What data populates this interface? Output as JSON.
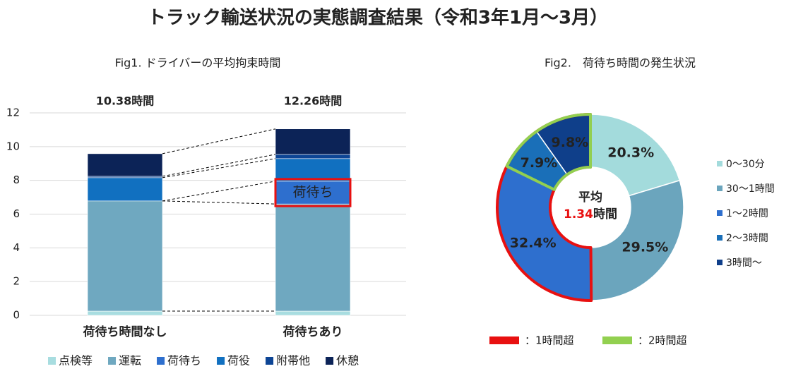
{
  "chart_data": [
    {
      "type": "bar",
      "stacked": true,
      "page_title": "トラック輸送状況の実態調査結果（令和3年1月～3月）",
      "title": "Fig1. ドライバーの平均拘束時間",
      "categories": [
        "荷待ち時間なし",
        "荷待ちあり"
      ],
      "annotations": [
        "10.38時間",
        "12.26時間"
      ],
      "highlight_label": "荷待ち",
      "series": [
        {
          "name": "点検等",
          "color": "#a8dde0",
          "values": [
            0.25,
            0.25
          ]
        },
        {
          "name": "運転",
          "color": "#6fa8c0",
          "values": [
            6.53,
            6.35
          ]
        },
        {
          "name": "荷待ち",
          "color": "#2e6fce",
          "values": [
            0,
            1.35
          ]
        },
        {
          "name": "荷役",
          "color": "#1170c0",
          "values": [
            1.38,
            1.34
          ]
        },
        {
          "name": "附帯他",
          "color": "#0d4595",
          "values": [
            0.08,
            0.25
          ]
        },
        {
          "name": "休憩",
          "color": "#0c2357",
          "values": [
            1.34,
            1.51
          ]
        }
      ],
      "ylim": [
        0,
        12
      ],
      "yticks": [
        0,
        2,
        4,
        6,
        8,
        10,
        12
      ],
      "grid": true
    },
    {
      "type": "pie",
      "donut": true,
      "title": "Fig2.　荷待ち時間の発生状況",
      "categories": [
        "0～30分",
        "30～1時間",
        "1～2時間",
        "2～3時間",
        "3時間～"
      ],
      "values": [
        20.3,
        29.5,
        32.4,
        7.9,
        9.8
      ],
      "value_labels": [
        "20.3%",
        "29.5%",
        "32.4%",
        "7.9%",
        "9.8%"
      ],
      "colors": [
        "#a3dbdc",
        "#6ba5bd",
        "#2e6fce",
        "#1a6fb8",
        "#0f3f8a"
      ],
      "center_title": "平均",
      "center_value": "1.34",
      "center_unit": "時間",
      "outline_legend": [
        {
          "label": "：1時間超",
          "color": "#e81010"
        },
        {
          "label": "：2時間超",
          "color": "#92d050"
        }
      ]
    }
  ]
}
